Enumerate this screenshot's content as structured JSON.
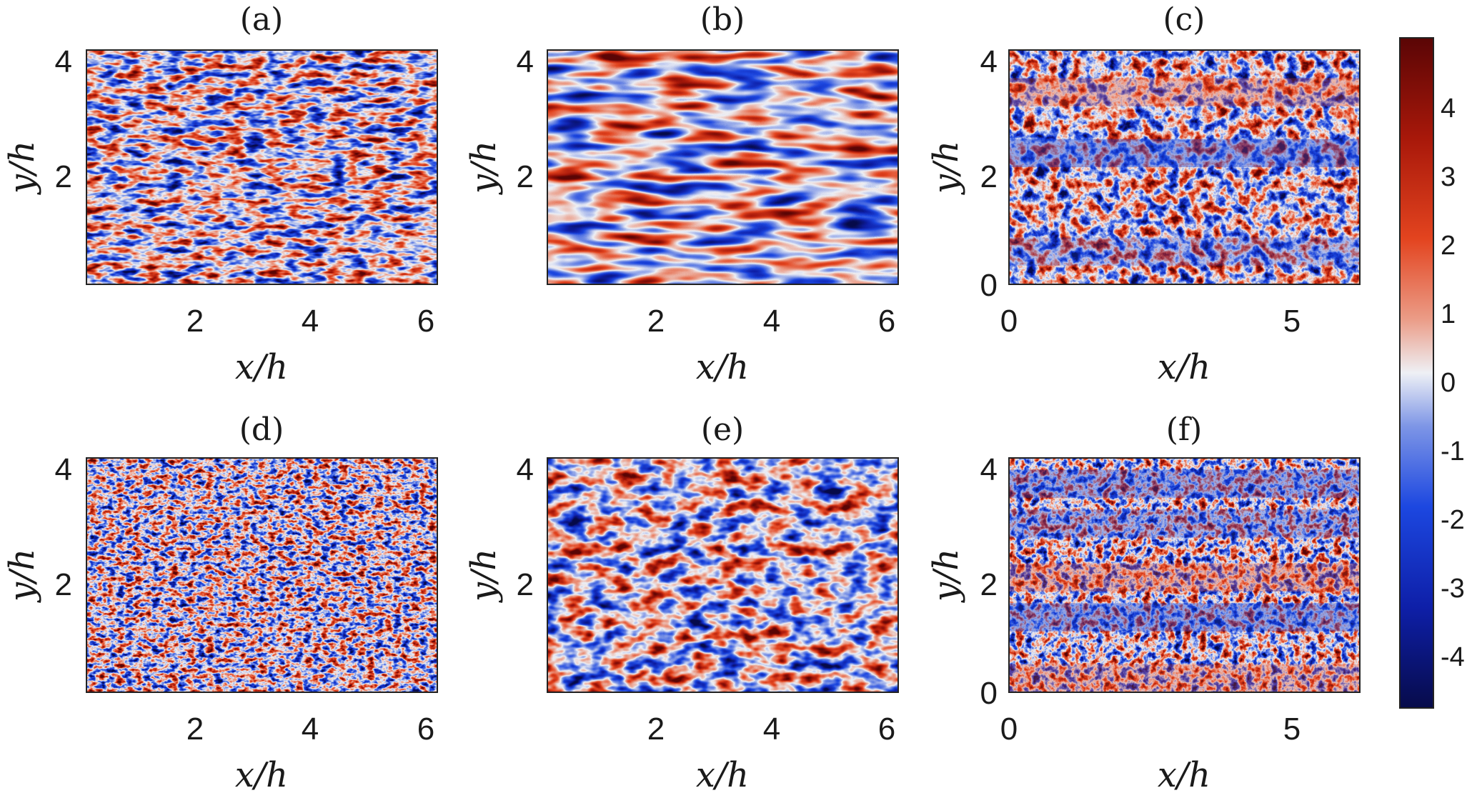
{
  "colorbar": {
    "ticks": [
      "4",
      "3",
      "2",
      "1",
      "0",
      "-1",
      "-2",
      "-3",
      "-4"
    ],
    "range": [
      -4.9,
      4.9
    ],
    "colors": {
      "min": "#070b4a",
      "low": "#1540d6",
      "mid": "#eef0f5",
      "high": "#e3441f",
      "max": "#5a0505"
    }
  },
  "chart_data": [
    {
      "type": "heatmap",
      "panel": "(a)",
      "title": "(a)",
      "xlabel": "x/h",
      "ylabel": "y/h",
      "xticks": [
        "2",
        "4",
        "6"
      ],
      "yticks": [
        "2",
        "4"
      ],
      "xlim": [
        0.0,
        6.283
      ],
      "ylim": [
        0.0,
        4.189
      ],
      "pattern": "fine streaky alternating positive/negative fluctuations",
      "value_range": [
        -4.5,
        4.5
      ]
    },
    {
      "type": "heatmap",
      "panel": "(b)",
      "title": "(b)",
      "xlabel": "x/h",
      "ylabel": "y/h",
      "xticks": [
        "2",
        "4",
        "6"
      ],
      "yticks": [
        "2",
        "4"
      ],
      "xlim": [
        0.0,
        6.283
      ],
      "ylim": [
        0.0,
        4.189
      ],
      "pattern": "smooth elongated streamwise streaks",
      "value_range": [
        -4.5,
        4.5
      ]
    },
    {
      "type": "heatmap",
      "panel": "(c)",
      "title": "(c)",
      "xlabel": "x/h",
      "ylabel": "y/h",
      "xticks": [
        "0",
        "5"
      ],
      "yticks": [
        "0",
        "2",
        "4"
      ],
      "xlim": [
        0.0,
        6.283
      ],
      "ylim": [
        0.0,
        4.189
      ],
      "pattern": "large-scale bands with fine-scale noise",
      "value_range": [
        -4.5,
        4.5
      ]
    },
    {
      "type": "heatmap",
      "panel": "(d)",
      "title": "(d)",
      "xlabel": "x/h",
      "ylabel": "y/h",
      "xticks": [
        "2",
        "4",
        "6"
      ],
      "yticks": [
        "2",
        "4"
      ],
      "xlim": [
        0.0,
        6.283
      ],
      "ylim": [
        0.0,
        4.189
      ],
      "pattern": "very fine small-scale fluctuations",
      "value_range": [
        -4.5,
        4.5
      ]
    },
    {
      "type": "heatmap",
      "panel": "(e)",
      "title": "(e)",
      "xlabel": "x/h",
      "ylabel": "y/h",
      "xticks": [
        "2",
        "4",
        "6"
      ],
      "yticks": [
        "2",
        "4"
      ],
      "xlim": [
        0.0,
        6.283
      ],
      "ylim": [
        0.0,
        4.189
      ],
      "pattern": "medium-scale blobs",
      "value_range": [
        -4.5,
        4.5
      ]
    },
    {
      "type": "heatmap",
      "panel": "(f)",
      "title": "(f)",
      "xlabel": "x/h",
      "ylabel": "y/h",
      "xticks": [
        "0",
        "5"
      ],
      "yticks": [
        "0",
        "2",
        "4"
      ],
      "xlim": [
        0.0,
        6.283
      ],
      "ylim": [
        0.0,
        4.189
      ],
      "pattern": "alternating large-scale bands with fine-scale noise",
      "value_range": [
        -4.5,
        4.5
      ]
    }
  ]
}
